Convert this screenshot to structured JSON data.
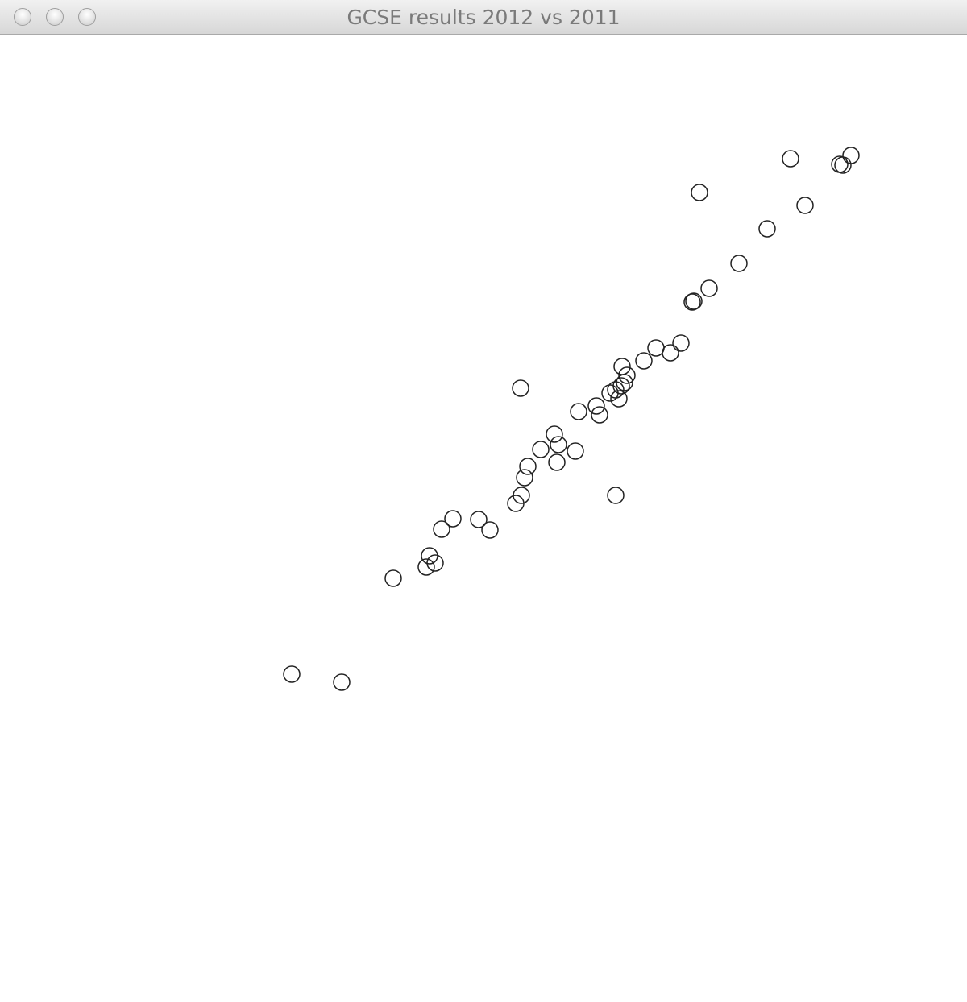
{
  "window": {
    "title": "GCSE results 2012 vs 2011",
    "buttons": [
      "close",
      "minimize",
      "zoom"
    ]
  },
  "chart_data": {
    "type": "scatter",
    "title": "",
    "xlabel": "",
    "ylabel": "",
    "axes_visible": false,
    "grid": false,
    "marker": "hollow-circle",
    "marker_color": "#222222",
    "x": [
      362,
      424,
      488,
      529,
      533,
      540,
      548,
      562,
      594,
      608,
      640,
      647,
      651,
      655,
      646,
      671,
      688,
      691,
      693,
      714,
      718,
      740,
      744,
      757,
      764,
      768,
      771,
      775,
      778,
      772,
      764,
      799,
      814,
      832,
      845,
      859,
      861,
      880,
      917,
      952,
      999,
      981,
      868,
      1042,
      1046,
      1056
    ],
    "y": [
      -837,
      -847,
      -718,
      -704,
      -690,
      -699,
      -657,
      -644,
      -645,
      -658,
      -625,
      -615,
      -593,
      -579,
      -482,
      -558,
      -539,
      -574,
      -552,
      -560,
      -511,
      -504,
      -515,
      -488,
      -484,
      -495,
      -479,
      -475,
      -466,
      -455,
      -615,
      -448,
      -432,
      -438,
      -426,
      -375,
      -374,
      -358,
      -327,
      -284,
      -255,
      -197,
      -239,
      -204,
      -205,
      -193
    ]
  }
}
